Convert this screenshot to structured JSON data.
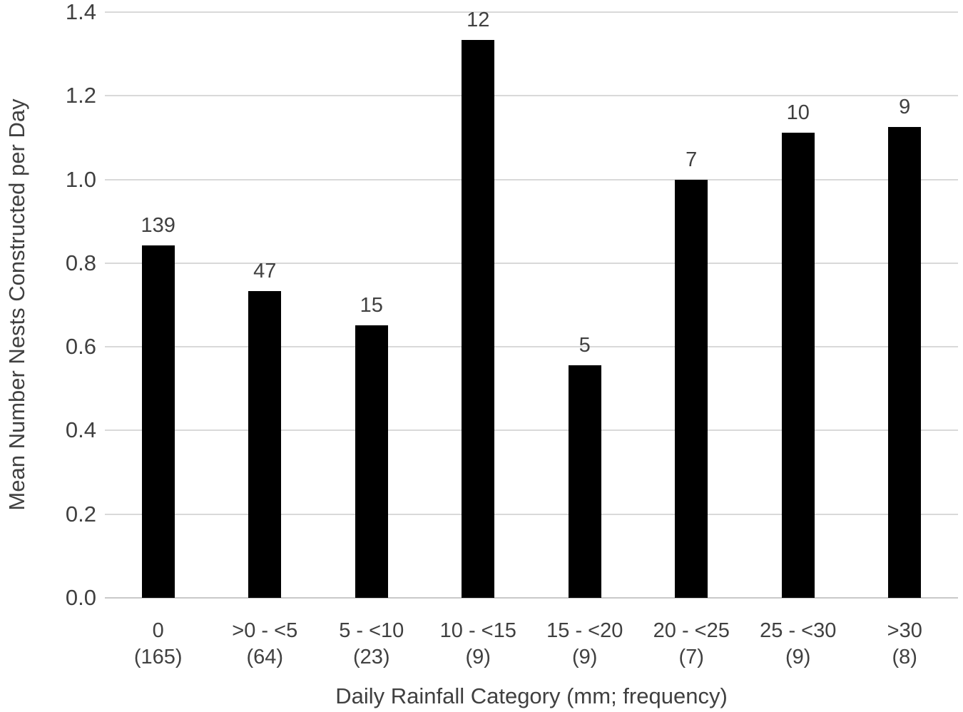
{
  "figure": {
    "background_color": "#ffffff",
    "text_color": "#404040",
    "gridline_color": "#d9d9d9",
    "axis_line_color": "#c9c9c9",
    "bar_color": "#000000"
  },
  "chart_data": {
    "type": "bar",
    "title": "",
    "xlabel": "Daily Rainfall Category (mm; frequency)",
    "ylabel": "Mean Number Nests Constructed per Day",
    "categories": [
      {
        "range": "0",
        "frequency": "(165)"
      },
      {
        "range": ">0 - <5",
        "frequency": "(64)"
      },
      {
        "range": "5 - <10",
        "frequency": "(23)"
      },
      {
        "range": "10 - <15",
        "frequency": "(9)"
      },
      {
        "range": "15 - <20",
        "frequency": "(9)"
      },
      {
        "range": "20 - <25",
        "frequency": "(7)"
      },
      {
        "range": "25 - <30",
        "frequency": "(9)"
      },
      {
        "range": ">30",
        "frequency": "(8)"
      }
    ],
    "values": [
      0.842,
      0.734,
      0.652,
      1.333,
      0.556,
      1.0,
      1.111,
      1.125
    ],
    "bar_labels": [
      "139",
      "47",
      "15",
      "12",
      "5",
      "7",
      "10",
      "9"
    ],
    "ylim": [
      0.0,
      1.4
    ],
    "ytick_step": 0.2,
    "yticks": [
      "0.0",
      "0.2",
      "0.4",
      "0.6",
      "0.8",
      "1.0",
      "1.2",
      "1.4"
    ],
    "grid": true,
    "legend_position": "none"
  }
}
